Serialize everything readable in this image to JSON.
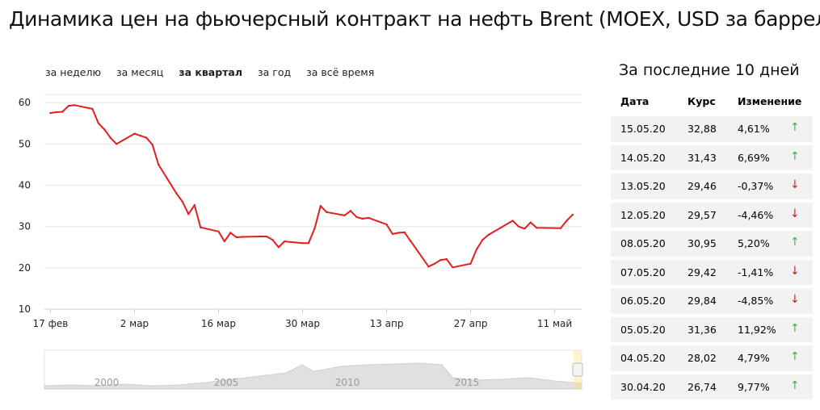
{
  "title": "Динамика цен на фьючерсный контракт на нефть Brent (MOEX, USD за баррель)",
  "periods": [
    {
      "label": "за неделю",
      "active": false
    },
    {
      "label": "за месяц",
      "active": false
    },
    {
      "label": "за квартал",
      "active": true
    },
    {
      "label": "за год",
      "active": false
    },
    {
      "label": "за всё время",
      "active": false
    }
  ],
  "colors": {
    "line": "#e0201f",
    "up": "#3cb043",
    "down": "#d11b1b",
    "row_bg": "#f2f2f2",
    "grid": "#e6e6e6"
  },
  "chart_data": {
    "type": "line",
    "title": "",
    "xlabel": "",
    "ylabel": "",
    "ylim": [
      10,
      62
    ],
    "yticks": [
      10,
      20,
      30,
      40,
      50,
      60
    ],
    "grid": true,
    "xticks": [
      {
        "label": "17 фев",
        "x": "2020-02-17"
      },
      {
        "label": "2 мар",
        "x": "2020-03-02"
      },
      {
        "label": "16 мар",
        "x": "2020-03-16"
      },
      {
        "label": "30 мар",
        "x": "2020-03-30"
      },
      {
        "label": "13 апр",
        "x": "2020-04-13"
      },
      {
        "label": "27 апр",
        "x": "2020-04-27"
      },
      {
        "label": "11 май",
        "x": "2020-05-11"
      }
    ],
    "series": [
      {
        "points": [
          [
            "2020-02-17",
            57.5
          ],
          [
            "2020-02-18",
            57.7
          ],
          [
            "2020-02-19",
            57.8
          ],
          [
            "2020-02-20",
            59.2
          ],
          [
            "2020-02-21",
            59.4
          ],
          [
            "2020-02-24",
            58.5
          ],
          [
            "2020-02-25",
            55.0
          ],
          [
            "2020-02-26",
            53.5
          ],
          [
            "2020-02-27",
            51.5
          ],
          [
            "2020-02-28",
            50.0
          ],
          [
            "2020-03-02",
            52.5
          ],
          [
            "2020-03-03",
            52.0
          ],
          [
            "2020-03-04",
            51.5
          ],
          [
            "2020-03-05",
            49.8
          ],
          [
            "2020-03-06",
            45.0
          ],
          [
            "2020-03-09",
            38.0
          ],
          [
            "2020-03-10",
            36.0
          ],
          [
            "2020-03-11",
            33.0
          ],
          [
            "2020-03-12",
            35.2
          ],
          [
            "2020-03-13",
            29.8
          ],
          [
            "2020-03-16",
            28.8
          ],
          [
            "2020-03-17",
            26.4
          ],
          [
            "2020-03-18",
            28.5
          ],
          [
            "2020-03-19",
            27.4
          ],
          [
            "2020-03-20",
            27.5
          ],
          [
            "2020-03-23",
            27.6
          ],
          [
            "2020-03-24",
            27.6
          ],
          [
            "2020-03-25",
            26.8
          ],
          [
            "2020-03-26",
            25.0
          ],
          [
            "2020-03-27",
            26.4
          ],
          [
            "2020-03-30",
            26.0
          ],
          [
            "2020-03-31",
            26.0
          ],
          [
            "2020-04-01",
            29.5
          ],
          [
            "2020-04-02",
            35.0
          ],
          [
            "2020-04-03",
            33.5
          ],
          [
            "2020-04-06",
            32.7
          ],
          [
            "2020-04-07",
            33.8
          ],
          [
            "2020-04-08",
            32.3
          ],
          [
            "2020-04-09",
            31.9
          ],
          [
            "2020-04-10",
            32.1
          ],
          [
            "2020-04-13",
            30.5
          ],
          [
            "2020-04-14",
            28.2
          ],
          [
            "2020-04-15",
            28.5
          ],
          [
            "2020-04-16",
            28.6
          ],
          [
            "2020-04-17",
            26.5
          ],
          [
            "2020-04-20",
            20.3
          ],
          [
            "2020-04-21",
            21.0
          ],
          [
            "2020-04-22",
            21.9
          ],
          [
            "2020-04-23",
            22.1
          ],
          [
            "2020-04-24",
            20.1
          ],
          [
            "2020-04-27",
            21.0
          ],
          [
            "2020-04-28",
            24.5
          ],
          [
            "2020-04-29",
            26.8
          ],
          [
            "2020-04-30",
            28.0
          ],
          [
            "2020-05-04",
            31.4
          ],
          [
            "2020-05-05",
            30.0
          ],
          [
            "2020-05-06",
            29.5
          ],
          [
            "2020-05-07",
            31.0
          ],
          [
            "2020-05-08",
            29.7
          ],
          [
            "2020-05-12",
            29.6
          ],
          [
            "2020-05-13",
            31.4
          ],
          [
            "2020-05-14",
            32.9
          ]
        ]
      }
    ]
  },
  "navigator": {
    "years": [
      "2000",
      "2005",
      "2010",
      "2015"
    ]
  },
  "table": {
    "title": "За последние 10 дней",
    "headers": {
      "date": "Дата",
      "rate": "Курс",
      "change": "Изменение"
    },
    "rows": [
      {
        "date": "15.05.20",
        "rate": "32,88",
        "change": "4,61%",
        "dir": "up",
        "arrow": "↑"
      },
      {
        "date": "14.05.20",
        "rate": "31,43",
        "change": "6,69%",
        "dir": "up",
        "arrow": "↑"
      },
      {
        "date": "13.05.20",
        "rate": "29,46",
        "change": "-0,37%",
        "dir": "down",
        "arrow": "↓"
      },
      {
        "date": "12.05.20",
        "rate": "29,57",
        "change": "-4,46%",
        "dir": "down",
        "arrow": "↓"
      },
      {
        "date": "08.05.20",
        "rate": "30,95",
        "change": "5,20%",
        "dir": "up",
        "arrow": "↑"
      },
      {
        "date": "07.05.20",
        "rate": "29,42",
        "change": "-1,41%",
        "dir": "down",
        "arrow": "↓"
      },
      {
        "date": "06.05.20",
        "rate": "29,84",
        "change": "-4,85%",
        "dir": "down",
        "arrow": "↓"
      },
      {
        "date": "05.05.20",
        "rate": "31,36",
        "change": "11,92%",
        "dir": "up",
        "arrow": "↑"
      },
      {
        "date": "04.05.20",
        "rate": "28,02",
        "change": "4,79%",
        "dir": "up",
        "arrow": "↑"
      },
      {
        "date": "30.04.20",
        "rate": "26,74",
        "change": "9,77%",
        "dir": "up",
        "arrow": "↑"
      }
    ]
  }
}
